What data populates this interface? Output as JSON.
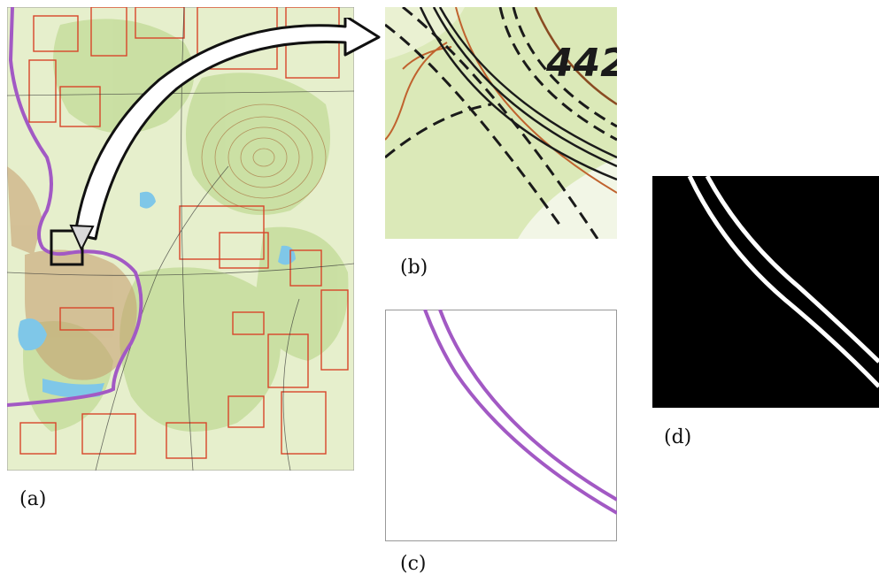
{
  "panels": {
    "a": {
      "label": "(a)"
    },
    "b": {
      "label": "(b)",
      "contour_number": "442"
    },
    "c": {
      "label": "(c)"
    },
    "d": {
      "label": "(d)"
    }
  },
  "colors": {
    "map_bg": "#e3eec8",
    "forest": "#cfe3a8",
    "grid_red": "#d8452a",
    "contour_brown": "#b5763e",
    "road_purple": "#a259c4",
    "water": "#7fc7e8",
    "road_black": "#1a1a1a",
    "mask_bg": "#000000",
    "mask_line": "#ffffff"
  }
}
